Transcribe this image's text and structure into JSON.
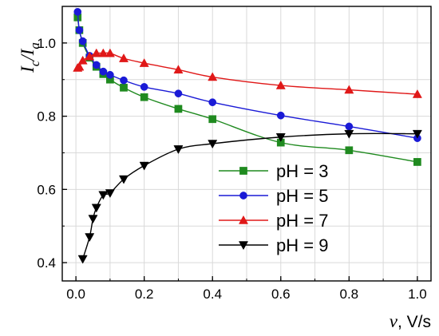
{
  "chart_data": {
    "type": "line",
    "title": "",
    "xlabel": {
      "symbol": "v",
      "unit": ", V/s"
    },
    "ylabel": {
      "main": "I",
      "sub1": "c",
      "sep": "/",
      "main2": "I",
      "sub2": "a"
    },
    "xlim": [
      -0.04,
      1.04
    ],
    "ylim": [
      0.35,
      1.1
    ],
    "xticks": [
      0.0,
      0.2,
      0.4,
      0.6,
      0.8,
      1.0
    ],
    "xtick_labels": [
      "0.0",
      "0.2",
      "0.4",
      "0.6",
      "0.8",
      "1.0"
    ],
    "yticks": [
      0.4,
      0.6,
      0.8,
      1.0
    ],
    "ytick_labels": [
      "0.4",
      "0.6",
      "0.8",
      "1.0"
    ],
    "grid": true,
    "legend_position": "lower-right",
    "series": [
      {
        "name": "pH = 3",
        "color": "#1f8a1f",
        "marker": "square",
        "x": [
          0.005,
          0.01,
          0.02,
          0.04,
          0.06,
          0.08,
          0.1,
          0.14,
          0.2,
          0.3,
          0.4,
          0.6,
          0.8,
          1.0
        ],
        "y": [
          1.07,
          1.035,
          1.0,
          0.96,
          0.935,
          0.915,
          0.9,
          0.878,
          0.852,
          0.82,
          0.792,
          0.728,
          0.707,
          0.675
        ]
      },
      {
        "name": "pH = 5",
        "color": "#1a1ad6",
        "marker": "circle",
        "x": [
          0.005,
          0.01,
          0.02,
          0.04,
          0.06,
          0.08,
          0.1,
          0.14,
          0.2,
          0.3,
          0.4,
          0.6,
          0.8,
          1.0
        ],
        "y": [
          1.085,
          1.035,
          1.005,
          0.965,
          0.94,
          0.922,
          0.913,
          0.898,
          0.88,
          0.862,
          0.838,
          0.802,
          0.772,
          0.74
        ]
      },
      {
        "name": "pH = 7",
        "color": "#e01818",
        "marker": "triangle-up",
        "x": [
          0.005,
          0.01,
          0.02,
          0.04,
          0.06,
          0.08,
          0.1,
          0.14,
          0.2,
          0.3,
          0.4,
          0.6,
          0.8,
          1.0
        ],
        "y": [
          0.932,
          0.935,
          0.952,
          0.963,
          0.972,
          0.972,
          0.972,
          0.958,
          0.945,
          0.927,
          0.907,
          0.884,
          0.872,
          0.86
        ]
      },
      {
        "name": "pH = 9",
        "color": "#000000",
        "marker": "triangle-down",
        "x": [
          0.02,
          0.04,
          0.05,
          0.06,
          0.08,
          0.1,
          0.14,
          0.2,
          0.3,
          0.4,
          0.6,
          0.8,
          1.0
        ],
        "y": [
          0.41,
          0.47,
          0.52,
          0.55,
          0.585,
          0.59,
          0.628,
          0.665,
          0.71,
          0.725,
          0.743,
          0.752,
          0.752
        ]
      }
    ]
  }
}
